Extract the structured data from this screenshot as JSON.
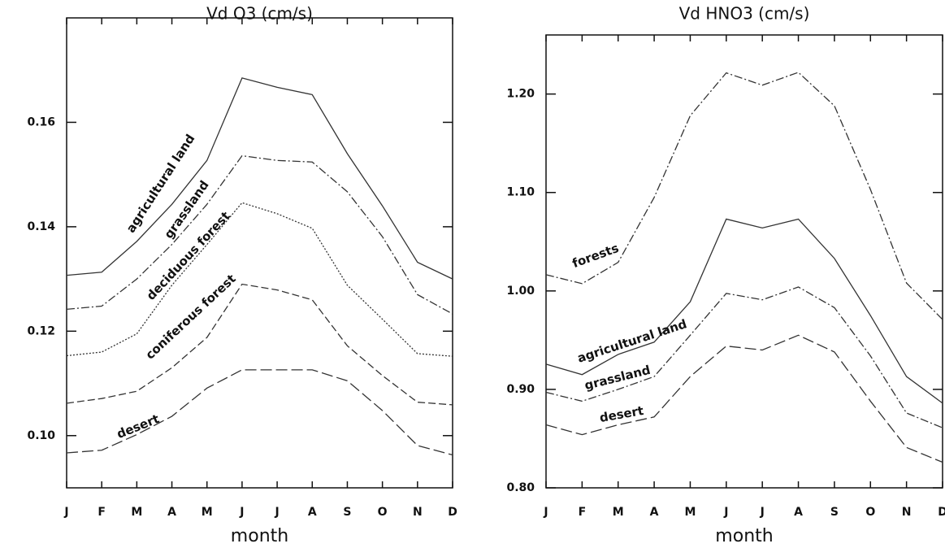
{
  "chart_data": [
    {
      "type": "line",
      "title": "Vd O3 (cm/s)",
      "xlabel": "month",
      "categories": [
        "J",
        "F",
        "M",
        "A",
        "M",
        "J",
        "J",
        "A",
        "S",
        "O",
        "N",
        "D"
      ],
      "ylim": [
        0.09,
        0.18
      ],
      "yticks": [
        {
          "value": 0.1,
          "label": "0.10"
        },
        {
          "value": 0.12,
          "label": "0.12"
        },
        {
          "value": 0.14,
          "label": "0.14"
        },
        {
          "value": 0.16,
          "label": "0.16"
        }
      ],
      "series": [
        {
          "name": "agricultural land",
          "color": "#333333",
          "values": [
            0.1307,
            0.1313,
            0.1372,
            0.1443,
            0.1527,
            0.1685,
            0.1667,
            0.1653,
            0.154,
            0.144,
            0.1332,
            0.13
          ]
        },
        {
          "name": "grassland",
          "color": "#333333",
          "values": [
            0.1242,
            0.1248,
            0.13,
            0.1366,
            0.1443,
            0.1536,
            0.1527,
            0.1524,
            0.1467,
            0.1381,
            0.127,
            0.1233
          ]
        },
        {
          "name": "deciduous forest",
          "color": "#333333",
          "values": [
            0.1153,
            0.116,
            0.1195,
            0.1288,
            0.1366,
            0.1446,
            0.1425,
            0.1397,
            0.1288,
            0.1223,
            0.1157,
            0.1152
          ]
        },
        {
          "name": "coniferous forest",
          "color": "#333333",
          "values": [
            0.1062,
            0.1071,
            0.1085,
            0.113,
            0.1188,
            0.129,
            0.1279,
            0.126,
            0.1172,
            0.1115,
            0.1064,
            0.1059
          ]
        },
        {
          "name": "desert",
          "color": "#333333",
          "values": [
            0.0967,
            0.0972,
            0.1002,
            0.1037,
            0.1091,
            0.1126,
            0.1126,
            0.1126,
            0.1105,
            0.1048,
            0.0981,
            0.0963
          ]
        }
      ]
    },
    {
      "type": "line",
      "title": "Vd HNO3 (cm/s)",
      "xlabel": "month",
      "categories": [
        "J",
        "F",
        "M",
        "A",
        "M",
        "J",
        "J",
        "A",
        "S",
        "O",
        "N",
        "D"
      ],
      "ylim": [
        0.8,
        1.26
      ],
      "yticks": [
        {
          "value": 0.8,
          "label": "0.80"
        },
        {
          "value": 0.9,
          "label": "0.90"
        },
        {
          "value": 1.0,
          "label": "1.00"
        },
        {
          "value": 1.1,
          "label": "1.10"
        },
        {
          "value": 1.2,
          "label": "1.20"
        }
      ],
      "series": [
        {
          "name": "forests",
          "color": "#333333",
          "values": [
            1.0165,
            1.0074,
            1.029,
            1.095,
            1.178,
            1.2215,
            1.209,
            1.222,
            1.188,
            1.103,
            1.008,
            0.971
          ]
        },
        {
          "name": "agricultural land",
          "color": "#333333",
          "values": [
            0.9256,
            0.915,
            0.9355,
            0.948,
            0.989,
            1.073,
            1.064,
            1.073,
            1.033,
            0.975,
            0.913,
            0.886
          ]
        },
        {
          "name": "grassland",
          "color": "#333333",
          "values": [
            0.897,
            0.888,
            0.9,
            0.913,
            0.955,
            0.9975,
            0.991,
            1.004,
            0.983,
            0.934,
            0.876,
            0.861
          ]
        },
        {
          "name": "desert",
          "color": "#333333",
          "values": [
            0.864,
            0.854,
            0.864,
            0.872,
            0.913,
            0.944,
            0.94,
            0.955,
            0.938,
            0.888,
            0.841,
            0.826
          ]
        }
      ]
    }
  ]
}
